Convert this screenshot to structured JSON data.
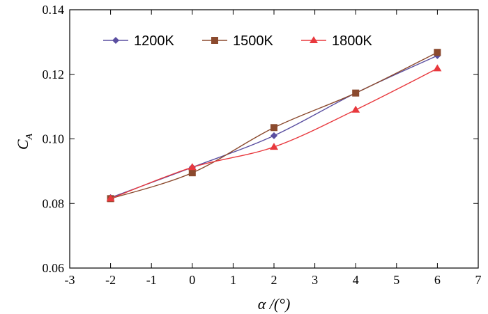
{
  "chart_data": {
    "type": "line",
    "title": "",
    "xlabel": "α /(°)",
    "ylabel": "C",
    "ylabel_subscript": "A",
    "xlim": [
      -3,
      7
    ],
    "ylim": [
      0.06,
      0.14
    ],
    "x_ticks": [
      -3,
      -2,
      -1,
      0,
      1,
      2,
      3,
      4,
      5,
      6,
      7
    ],
    "y_ticks": [
      0.06,
      0.08,
      0.1,
      0.12,
      0.14
    ],
    "x_tick_labels": [
      "-3",
      "-2",
      "-1",
      "0",
      "1",
      "2",
      "3",
      "4",
      "5",
      "6",
      "7"
    ],
    "y_tick_labels": [
      "0.06",
      "0.08",
      "0.10",
      "0.12",
      "0.14"
    ],
    "grid": false,
    "legend_position": "top",
    "series": [
      {
        "name": "1200K",
        "color": "#5a4ea0",
        "marker": "diamond",
        "x": [
          -2,
          0,
          2,
          4,
          6
        ],
        "y": [
          0.0818,
          0.0912,
          0.101,
          0.1142,
          0.1258
        ]
      },
      {
        "name": "1500K",
        "color": "#8b4a2e",
        "marker": "square",
        "x": [
          -2,
          0,
          2,
          4,
          6
        ],
        "y": [
          0.0815,
          0.0895,
          0.1035,
          0.1142,
          0.1268
        ]
      },
      {
        "name": "1800K",
        "color": "#e8383d",
        "marker": "triangle",
        "x": [
          -2,
          0,
          2,
          4,
          6
        ],
        "y": [
          0.0815,
          0.0912,
          0.0975,
          0.109,
          0.1218
        ]
      }
    ]
  }
}
